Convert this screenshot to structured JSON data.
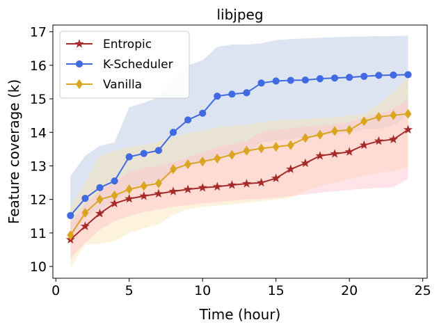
{
  "chart_data": {
    "type": "line",
    "title": "libjpeg",
    "xlabel": "Time (hour)",
    "ylabel": "Feature coverage (k)",
    "xlim": [
      -0.2,
      25.3
    ],
    "ylim": [
      9.65,
      17.2
    ],
    "xticks": [
      "0",
      "5",
      "10",
      "15",
      "20",
      "25"
    ],
    "yticks": [
      "10",
      "11",
      "12",
      "13",
      "14",
      "15",
      "16",
      "17"
    ],
    "legend_position": "top-left",
    "grid": false,
    "x": [
      1,
      2,
      3,
      4,
      5,
      6,
      7,
      8,
      9,
      10,
      11,
      12,
      13,
      14,
      15,
      16,
      17,
      18,
      19,
      20,
      21,
      22,
      23,
      24
    ],
    "series": [
      {
        "name": "Entropic",
        "color": "#a52a2a",
        "band_color": "#ffc0cb",
        "marker": "star",
        "values": [
          10.8,
          11.2,
          11.58,
          11.88,
          12.02,
          12.1,
          12.17,
          12.24,
          12.3,
          12.35,
          12.38,
          12.43,
          12.47,
          12.5,
          12.63,
          12.9,
          13.08,
          13.3,
          13.36,
          13.42,
          13.62,
          13.74,
          13.79,
          14.08
        ],
        "lower": [
          10.25,
          10.7,
          11.1,
          11.35,
          11.5,
          11.62,
          11.7,
          11.78,
          11.83,
          11.88,
          11.92,
          11.96,
          12.0,
          12.02,
          12.05,
          12.1,
          12.15,
          12.2,
          12.24,
          12.28,
          12.32,
          12.34,
          12.36,
          12.62
        ],
        "upper": [
          11.3,
          11.85,
          12.25,
          12.55,
          12.8,
          12.95,
          13.0,
          13.1,
          13.25,
          13.4,
          13.55,
          13.65,
          13.75,
          14.0,
          14.08,
          14.12,
          14.17,
          14.2,
          14.25,
          14.3,
          14.45,
          14.55,
          14.7,
          15.0
        ]
      },
      {
        "name": "K-Scheduler",
        "color": "#4169e1",
        "band_color": "#b0c4de",
        "marker": "circle",
        "values": [
          11.52,
          12.03,
          12.35,
          12.55,
          13.27,
          13.37,
          13.46,
          14.0,
          14.37,
          14.57,
          15.08,
          15.14,
          15.18,
          15.47,
          15.53,
          15.55,
          15.56,
          15.6,
          15.62,
          15.64,
          15.67,
          15.7,
          15.71,
          15.72
        ],
        "lower": [
          10.8,
          11.45,
          11.75,
          11.9,
          12.25,
          12.4,
          12.55,
          12.8,
          13.0,
          13.1,
          13.25,
          13.3,
          13.35,
          13.7,
          13.75,
          13.8,
          13.85,
          13.9,
          13.95,
          14.0,
          14.1,
          14.1,
          14.2,
          14.5
        ],
        "upper": [
          12.7,
          13.3,
          13.6,
          13.7,
          14.75,
          14.88,
          15.05,
          15.6,
          16.0,
          16.15,
          16.55,
          16.62,
          16.62,
          16.65,
          16.75,
          16.78,
          16.8,
          16.82,
          16.84,
          16.85,
          16.86,
          16.87,
          16.87,
          16.88
        ]
      },
      {
        "name": "Vanilla",
        "color": "#daa520",
        "band_color": "#fbe3b0",
        "marker": "diamond",
        "values": [
          10.93,
          11.6,
          12.0,
          12.12,
          12.3,
          12.4,
          12.48,
          12.9,
          13.05,
          13.13,
          13.22,
          13.33,
          13.45,
          13.52,
          13.57,
          13.62,
          13.83,
          13.93,
          14.04,
          14.07,
          14.33,
          14.46,
          14.51,
          14.55
        ],
        "lower": [
          9.98,
          10.65,
          10.68,
          10.75,
          11.0,
          11.15,
          11.25,
          11.55,
          11.7,
          11.78,
          11.82,
          11.86,
          11.9,
          11.95,
          12.0,
          12.05,
          12.25,
          12.4,
          12.5,
          12.6,
          12.7,
          12.8,
          12.85,
          12.95
        ],
        "upper": [
          11.75,
          12.5,
          13.3,
          13.45,
          13.55,
          13.62,
          13.72,
          13.85,
          13.98,
          14.05,
          14.15,
          14.2,
          14.22,
          14.3,
          14.35,
          14.38,
          14.4,
          14.42,
          14.45,
          14.5,
          14.55,
          14.85,
          15.2,
          15.65
        ]
      }
    ]
  }
}
